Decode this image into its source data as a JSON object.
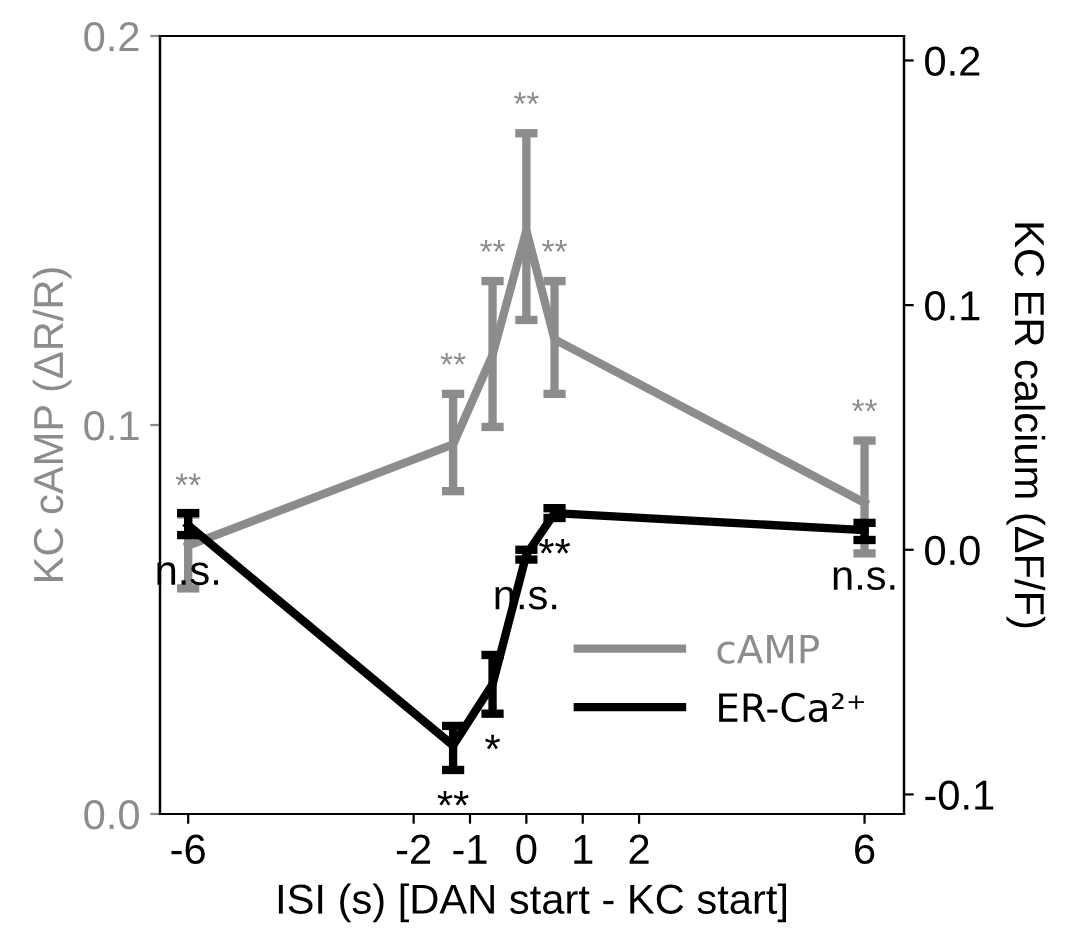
{
  "chart_data": {
    "type": "line",
    "xlabel": "ISI (s) [DAN start - KC start]",
    "ylabel": "KC cAMP (ΔR/R)",
    "y2label": "KC ER calcium (ΔF/F)",
    "x": [
      -6,
      -1.3,
      -0.6,
      0,
      0.5,
      6
    ],
    "series": [
      {
        "name": "cAMP",
        "color": "#8c8c8c",
        "values": [
          0.069,
          0.095,
          0.118,
          0.15,
          0.122,
          0.08
        ],
        "errors": [
          [
            0.058,
            0.077
          ],
          [
            0.083,
            0.108
          ],
          [
            0.0995,
            0.137
          ],
          [
            0.127,
            0.175
          ],
          [
            0.108,
            0.137
          ],
          [
            0.067,
            0.096
          ]
        ]
      },
      {
        "name": "ER-Ca²⁺",
        "color": "#000000",
        "axis": "y2",
        "values": [
          0.01,
          -0.08,
          -0.055,
          -0.002,
          0.015,
          0.008
        ],
        "errors": [
          [
            0.006,
            0.015
          ],
          [
            -0.09,
            -0.072
          ],
          [
            -0.067,
            -0.043
          ],
          [
            -0.004,
            0.0
          ],
          [
            0.013,
            0.017
          ],
          [
            0.004,
            0.011
          ]
        ]
      }
    ],
    "annotations": [
      "**",
      "**",
      "**",
      "**",
      "**",
      "**",
      "n.s.",
      "**",
      "*",
      "n.s.",
      "**",
      "n.s."
    ],
    "xlim": [
      -6.5,
      6.7
    ],
    "xticks": [
      -6,
      -2,
      -1,
      0,
      1,
      2,
      6
    ],
    "ylim": [
      0,
      0.2
    ],
    "yticks": [
      {
        "value": 0,
        "label": "0.0"
      },
      0.1,
      0.2
    ],
    "y2lim": [
      -0.108,
      0.21
    ],
    "y2ticks": [
      -0.1,
      {
        "value": 0,
        "label": "0.0"
      },
      0.1,
      0.2
    ],
    "legend": "bottom right",
    "grid": false
  }
}
